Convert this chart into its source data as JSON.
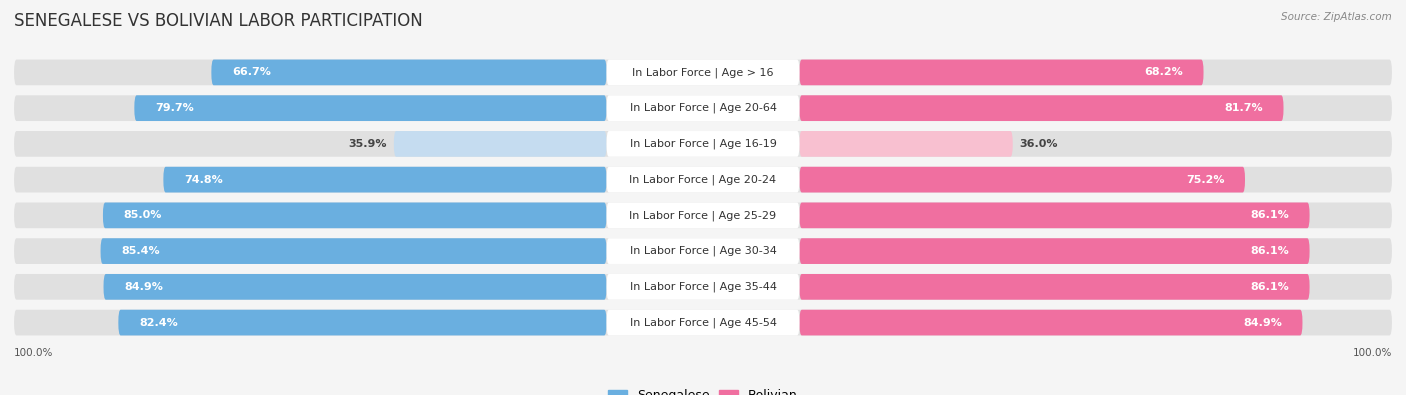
{
  "title": "SENEGALESE VS BOLIVIAN LABOR PARTICIPATION",
  "source": "Source: ZipAtlas.com",
  "categories": [
    "In Labor Force | Age > 16",
    "In Labor Force | Age 20-64",
    "In Labor Force | Age 16-19",
    "In Labor Force | Age 20-24",
    "In Labor Force | Age 25-29",
    "In Labor Force | Age 30-34",
    "In Labor Force | Age 35-44",
    "In Labor Force | Age 45-54"
  ],
  "senegalese_values": [
    66.7,
    79.7,
    35.9,
    74.8,
    85.0,
    85.4,
    84.9,
    82.4
  ],
  "bolivian_values": [
    68.2,
    81.7,
    36.0,
    75.2,
    86.1,
    86.1,
    86.1,
    84.9
  ],
  "senegalese_color": "#6aafe0",
  "senegalese_color_light": "#c5dcf0",
  "bolivian_color": "#f06fa0",
  "bolivian_color_light": "#f8c0d0",
  "row_bg_color": "#e0e0e0",
  "background_color": "#f5f5f5",
  "legend_labels": [
    "Senegalese",
    "Bolivian"
  ],
  "title_fontsize": 12,
  "label_fontsize": 8,
  "value_fontsize": 8,
  "bottom_label": "100.0%"
}
